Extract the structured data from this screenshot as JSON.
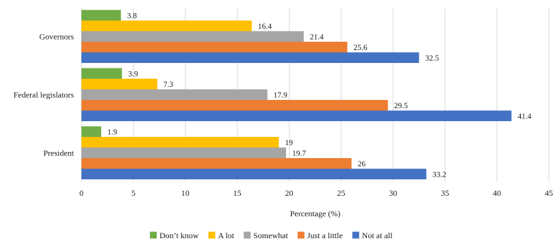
{
  "chart_data": {
    "type": "bar",
    "orientation": "horizontal",
    "categories": [
      "Governors",
      "Federal legislators",
      "President"
    ],
    "series": [
      {
        "name": "Don’t know",
        "color": "#70ad47",
        "values": [
          3.8,
          3.9,
          1.9
        ]
      },
      {
        "name": "A lot",
        "color": "#ffc000",
        "values": [
          16.4,
          7.3,
          19
        ]
      },
      {
        "name": "Somewhat",
        "color": "#a5a5a5",
        "values": [
          21.4,
          17.9,
          19.7
        ]
      },
      {
        "name": "Just a little",
        "color": "#ed7d31",
        "values": [
          25.6,
          29.5,
          26
        ]
      },
      {
        "name": "Not at all",
        "color": "#4472c4",
        "values": [
          32.5,
          41.4,
          33.2
        ]
      }
    ],
    "xlabel": "Percentage (%)",
    "ylabel": "",
    "xlim": [
      0,
      45
    ],
    "xticks": [
      0,
      5,
      10,
      15,
      20,
      25,
      30,
      35,
      40,
      45
    ],
    "grid": true,
    "legend": "bottom",
    "title": ""
  }
}
